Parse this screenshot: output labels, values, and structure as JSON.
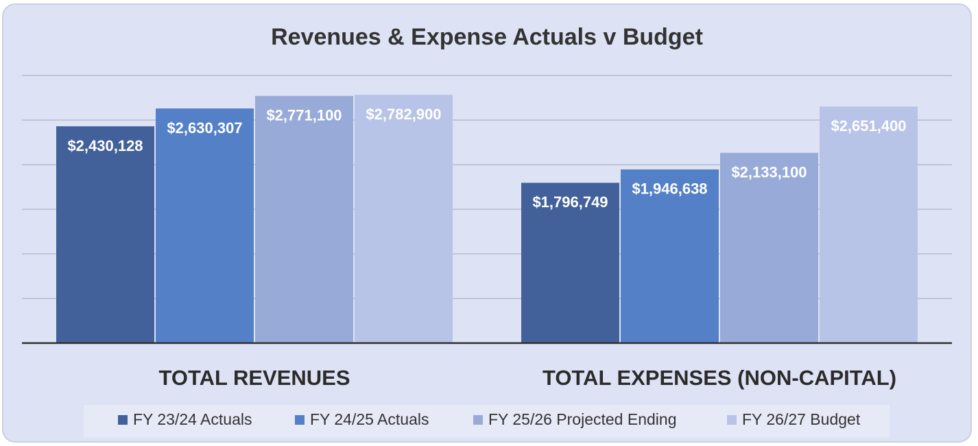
{
  "chart_data": {
    "type": "bar",
    "title": "Revenues & Expense Actuals v Budget",
    "categories": [
      "TOTAL REVENUES",
      "TOTAL EXPENSES (NON-CAPITAL)"
    ],
    "series": [
      {
        "name": "FY 23/24 Actuals",
        "color": "#42619a",
        "values": [
          2430128,
          1796749
        ],
        "value_labels": [
          "$2,430,128",
          "$1,796,749"
        ]
      },
      {
        "name": "FY 24/25 Actuals",
        "color": "#5480c8",
        "values": [
          2630307,
          1946638
        ],
        "value_labels": [
          "$2,630,307",
          "$1,946,638"
        ]
      },
      {
        "name": "FY 25/26 Projected Ending",
        "color": "#97aad8",
        "values": [
          2771100,
          2133100
        ],
        "value_labels": [
          "$2,771,100",
          "$2,133,100"
        ]
      },
      {
        "name": "FY 26/27 Budget",
        "color": "#b7c3e7",
        "values": [
          2782900,
          2651400
        ],
        "value_labels": [
          "$2,782,900",
          "$2,651,400"
        ]
      }
    ],
    "ylim": [
      0,
      3000000
    ],
    "yticks": [
      0,
      500000,
      1000000,
      1500000,
      2000000,
      2500000,
      3000000
    ],
    "grid": true,
    "legend": "bottom"
  }
}
